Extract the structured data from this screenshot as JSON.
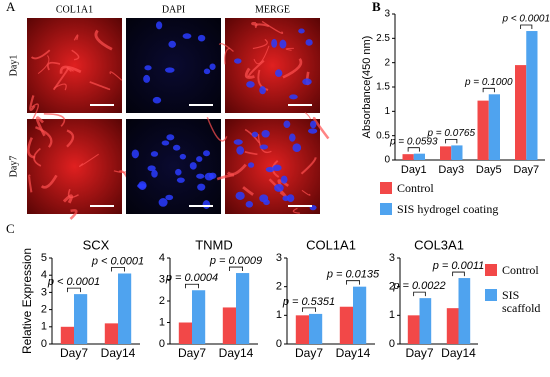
{
  "figure": {
    "panel_labels": [
      "A",
      "B",
      "C"
    ],
    "image_columns": [
      "COL1A1",
      "DAPI",
      "MERGE"
    ],
    "image_rows": [
      "Day1",
      "Day7"
    ]
  },
  "chart_data": [
    {
      "type": "bar",
      "ylabel": "Absorbance(450 nm)",
      "categories": [
        "Day1",
        "Day3",
        "Day5",
        "Day7"
      ],
      "series": [
        {
          "name": "Control",
          "color": "#f24848",
          "values": [
            0.12,
            0.28,
            1.22,
            1.95
          ]
        },
        {
          "name": "SIS hydrogel coating",
          "color": "#4fa3ef",
          "values": [
            0.13,
            0.3,
            1.35,
            2.65
          ]
        }
      ],
      "annotations": [
        "p = 0.0593",
        "p = 0.0765",
        "p = 0.1000",
        "p < 0.0001"
      ],
      "ylim": [
        0,
        3
      ],
      "yticks": [
        0,
        0.5,
        1,
        1.5,
        2,
        2.5,
        3
      ],
      "legend": "bottom"
    },
    {
      "type": "bar",
      "title": "SCX",
      "ylabel": "Relative Expression",
      "categories": [
        "Day7",
        "Day14"
      ],
      "series": [
        {
          "color": "#f24848",
          "values": [
            1.0,
            1.2
          ]
        },
        {
          "color": "#4fa3ef",
          "values": [
            2.9,
            4.1
          ]
        }
      ],
      "annotations": [
        "p < 0.0001",
        "p < 0.0001"
      ],
      "ylim": [
        0,
        5
      ],
      "yticks": [
        0,
        1,
        2,
        3,
        4,
        5
      ]
    },
    {
      "type": "bar",
      "title": "TNMD",
      "categories": [
        "Day7",
        "Day14"
      ],
      "series": [
        {
          "color": "#f24848",
          "values": [
            1.0,
            1.7
          ]
        },
        {
          "color": "#4fa3ef",
          "values": [
            2.5,
            3.3
          ]
        }
      ],
      "annotations": [
        "p = 0.0004",
        "p = 0.0009"
      ],
      "ylim": [
        0,
        4
      ],
      "yticks": [
        0,
        1,
        2,
        3,
        4
      ]
    },
    {
      "type": "bar",
      "title": "COL1A1",
      "categories": [
        "Day7",
        "Day14"
      ],
      "series": [
        {
          "color": "#f24848",
          "values": [
            1.0,
            1.3
          ]
        },
        {
          "color": "#4fa3ef",
          "values": [
            1.05,
            2.0
          ]
        }
      ],
      "annotations": [
        "p = 0.5351",
        "p = 0.0135"
      ],
      "ylim": [
        0,
        3
      ],
      "yticks": [
        0,
        1,
        2,
        3
      ]
    },
    {
      "type": "bar",
      "title": "COL3A1",
      "categories": [
        "Day7",
        "Day14"
      ],
      "series": [
        {
          "name": "Control",
          "color": "#f24848",
          "values": [
            1.0,
            1.25
          ]
        },
        {
          "name": "SIS scaffold",
          "color": "#4fa3ef",
          "values": [
            1.6,
            2.3
          ]
        }
      ],
      "annotations": [
        "p = 0.0022",
        "p = 0.0011"
      ],
      "ylim": [
        0,
        3
      ],
      "yticks": [
        0,
        1,
        2,
        3
      ],
      "legend": "right"
    }
  ]
}
